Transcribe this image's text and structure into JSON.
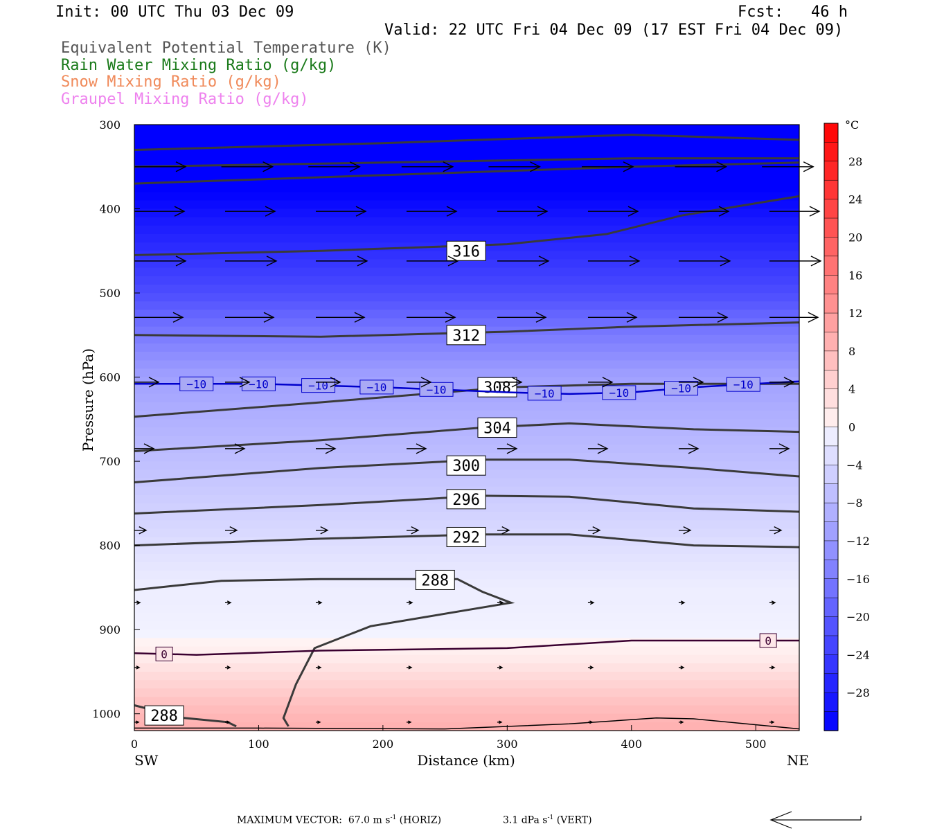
{
  "header": {
    "init": "Init: 00 UTC Thu 03 Dec 09",
    "fcst": "Fcst:   46 h",
    "valid": "Valid: 22 UTC Fri 04 Dec 09 (17 EST Fri 04 Dec 09)"
  },
  "legend": [
    {
      "label": "Equivalent Potential Temperature (K)",
      "color": "#555555"
    },
    {
      "label": "Rain Water Mixing Ratio (g/kg)",
      "color": "#1a7a1a"
    },
    {
      "label": "Snow Mixing Ratio (g/kg)",
      "color": "#f08a5a"
    },
    {
      "label": "Graupel Mixing Ratio (g/kg)",
      "color": "#ee82ee"
    }
  ],
  "footer": {
    "vector_label": "MAXIMUM VECTOR:",
    "horiz": "67.0 m s",
    "horiz_unit": "(HORIZ)",
    "vert": "3.1 dPa s",
    "vert_unit": "(VERT)",
    "exp": "-1"
  },
  "chart_data": {
    "type": "cross-section",
    "xlabel": "Distance (km)",
    "ylabel": "Pressure (hPa)",
    "x_left_label": "SW",
    "x_right_label": "NE",
    "xlim": [
      0,
      535
    ],
    "ylim": [
      1020,
      300
    ],
    "y_scale": "linear",
    "x_ticks": [
      0,
      100,
      200,
      300,
      400,
      500
    ],
    "y_ticks": [
      300,
      400,
      500,
      600,
      700,
      800,
      900,
      1000
    ],
    "colorbar": {
      "unit": "°C",
      "ticks": [
        28,
        24,
        20,
        16,
        12,
        8,
        4,
        0,
        -4,
        -8,
        -12,
        -16,
        -20,
        -24,
        -28
      ],
      "range": [
        -32,
        32
      ]
    },
    "temperature_field": [
      {
        "p": 300,
        "t": -40
      },
      {
        "p": 400,
        "t": -30
      },
      {
        "p": 450,
        "t": -26
      },
      {
        "p": 500,
        "t": -22
      },
      {
        "p": 550,
        "t": -16
      },
      {
        "p": 600,
        "t": -11
      },
      {
        "p": 650,
        "t": -9
      },
      {
        "p": 700,
        "t": -7
      },
      {
        "p": 750,
        "t": -5
      },
      {
        "p": 800,
        "t": -3
      },
      {
        "p": 850,
        "t": -1
      },
      {
        "p": 900,
        "t": -0.5
      },
      {
        "p": 930,
        "t": 1
      },
      {
        "p": 960,
        "t": 4
      },
      {
        "p": 1000,
        "t": 8
      },
      {
        "p": 1020,
        "t": 9
      }
    ],
    "theta_e_contours": [
      {
        "label": "",
        "points": [
          [
            0,
            330
          ],
          [
            200,
            322
          ],
          [
            400,
            312
          ],
          [
            535,
            318
          ]
        ]
      },
      {
        "label": "",
        "points": [
          [
            0,
            350
          ],
          [
            200,
            345
          ],
          [
            400,
            340
          ],
          [
            535,
            340
          ]
        ]
      },
      {
        "label": "",
        "points": [
          [
            0,
            370
          ],
          [
            200,
            360
          ],
          [
            400,
            350
          ],
          [
            535,
            345
          ]
        ]
      },
      {
        "label": "316",
        "label_at": [
          267,
          450
        ],
        "points": [
          [
            0,
            455
          ],
          [
            150,
            450
          ],
          [
            300,
            442
          ],
          [
            380,
            430
          ],
          [
            440,
            408
          ],
          [
            535,
            385
          ]
        ]
      },
      {
        "label": "312",
        "label_at": [
          267,
          550
        ],
        "points": [
          [
            0,
            550
          ],
          [
            150,
            552
          ],
          [
            300,
            546
          ],
          [
            400,
            540
          ],
          [
            535,
            535
          ]
        ]
      },
      {
        "label": "308",
        "label_at": [
          292,
          612
        ],
        "points": [
          [
            0,
            647
          ],
          [
            150,
            630
          ],
          [
            300,
            612
          ],
          [
            400,
            608
          ],
          [
            535,
            608
          ]
        ]
      },
      {
        "label": "304",
        "label_at": [
          292,
          660
        ],
        "points": [
          [
            0,
            688
          ],
          [
            150,
            675
          ],
          [
            280,
            660
          ],
          [
            350,
            655
          ],
          [
            450,
            662
          ],
          [
            535,
            665
          ]
        ]
      },
      {
        "label": "300",
        "label_at": [
          267,
          705
        ],
        "points": [
          [
            0,
            725
          ],
          [
            150,
            708
          ],
          [
            280,
            698
          ],
          [
            350,
            698
          ],
          [
            450,
            708
          ],
          [
            535,
            718
          ]
        ]
      },
      {
        "label": "296",
        "label_at": [
          267,
          745
        ],
        "points": [
          [
            0,
            762
          ],
          [
            150,
            752
          ],
          [
            280,
            741
          ],
          [
            350,
            742
          ],
          [
            450,
            756
          ],
          [
            535,
            760
          ]
        ]
      },
      {
        "label": "292",
        "label_at": [
          267,
          790
        ],
        "points": [
          [
            0,
            800
          ],
          [
            150,
            792
          ],
          [
            280,
            787
          ],
          [
            350,
            787
          ],
          [
            450,
            800
          ],
          [
            535,
            802
          ]
        ]
      },
      {
        "label": "288",
        "label_at": [
          242,
          841
        ],
        "points": [
          [
            0,
            853
          ],
          [
            70,
            842
          ],
          [
            150,
            840
          ],
          [
            260,
            840
          ],
          [
            280,
            855
          ],
          [
            303,
            868
          ],
          [
            190,
            896
          ],
          [
            145,
            922
          ],
          [
            130,
            965
          ],
          [
            120,
            1005
          ],
          [
            124,
            1015
          ]
        ]
      },
      {
        "label": "288",
        "label_at": [
          24,
          1002
        ],
        "points": [
          [
            0,
            990
          ],
          [
            40,
            1005
          ],
          [
            75,
            1010
          ],
          [
            82,
            1015
          ]
        ]
      }
    ],
    "isotherms": [
      {
        "value": -10,
        "color": "#0000cc",
        "label_positions": [
          50,
          100,
          148,
          195,
          243,
          330,
          390,
          440,
          490
        ],
        "points": [
          [
            0,
            608
          ],
          [
            100,
            608
          ],
          [
            200,
            612
          ],
          [
            300,
            618
          ],
          [
            350,
            620
          ],
          [
            400,
            618
          ],
          [
            450,
            612
          ],
          [
            535,
            605
          ]
        ]
      },
      {
        "value": 0,
        "color": "#3a0030",
        "label_positions": [
          24,
          510
        ],
        "points": [
          [
            0,
            928
          ],
          [
            50,
            930
          ],
          [
            150,
            925
          ],
          [
            300,
            922
          ],
          [
            400,
            913
          ],
          [
            535,
            913
          ]
        ]
      }
    ],
    "terrain": [
      [
        0,
        1017
      ],
      [
        100,
        1017
      ],
      [
        250,
        1018
      ],
      [
        350,
        1012
      ],
      [
        420,
        1005
      ],
      [
        450,
        1006
      ],
      [
        535,
        1018
      ]
    ],
    "wind_vectors": [
      {
        "p": 350,
        "x": [
          0,
          70,
          140,
          215,
          285,
          360,
          435,
          505
        ],
        "len": 74
      },
      {
        "p": 403,
        "x": [
          0,
          73,
          146,
          219,
          292,
          365,
          438,
          511
        ],
        "len": 72
      },
      {
        "p": 462,
        "x": [
          0,
          73,
          146,
          219,
          292,
          365,
          438,
          511
        ],
        "len": 74
      },
      {
        "p": 529,
        "x": [
          0,
          73,
          146,
          219,
          292,
          365,
          438,
          511
        ],
        "len": 70
      },
      {
        "p": 606,
        "x": [
          0,
          73,
          146,
          219,
          292,
          365,
          438,
          511
        ],
        "len": 35
      },
      {
        "p": 685,
        "x": [
          0,
          73,
          146,
          219,
          292,
          365,
          438,
          511
        ],
        "len": 28
      },
      {
        "p": 782,
        "x": [
          0,
          73,
          146,
          219,
          292,
          365,
          438,
          511
        ],
        "len": 17
      },
      {
        "p": 868,
        "x": [
          0,
          73,
          146,
          219,
          292,
          365,
          438,
          511
        ],
        "len": 8
      },
      {
        "p": 945,
        "x": [
          0,
          73,
          146,
          219,
          292,
          365,
          438,
          511
        ],
        "len": 7
      },
      {
        "p": 1010,
        "x": [
          0,
          73,
          146,
          219,
          292,
          365,
          438,
          511
        ],
        "len": 6
      }
    ]
  }
}
